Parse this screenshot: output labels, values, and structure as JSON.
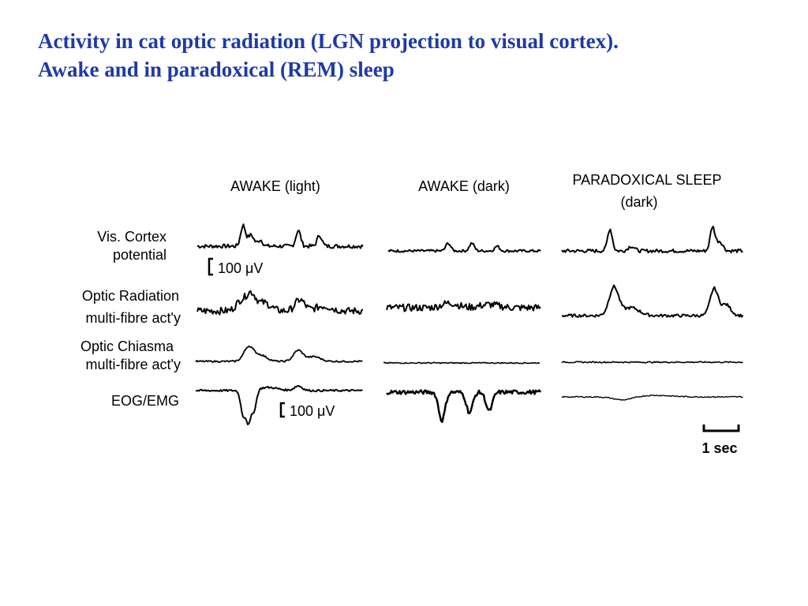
{
  "title_line_1": "Activity in cat optic radiation (LGN projection to visual cortex).",
  "title_line_2": "Awake and in paradoxical (REM) sleep",
  "figure": {
    "columns": [
      "AWAKE (light)",
      "AWAKE (dark)",
      "PARADOXICAL SLEEP"
    ],
    "column_sub": "(dark)",
    "rows": [
      {
        "line1": "Vis. Cortex",
        "line2": "potential"
      },
      {
        "line1": "Optic Radiation",
        "line2": "multi-fibre act'y"
      },
      {
        "line1": "Optic Chiasma",
        "line2": "multi-fibre act'y"
      },
      {
        "line1": "EOG/EMG",
        "line2": ""
      }
    ],
    "scale_upper": "100 μV",
    "scale_lower": "100 μV",
    "time_scale": "1 sec"
  }
}
